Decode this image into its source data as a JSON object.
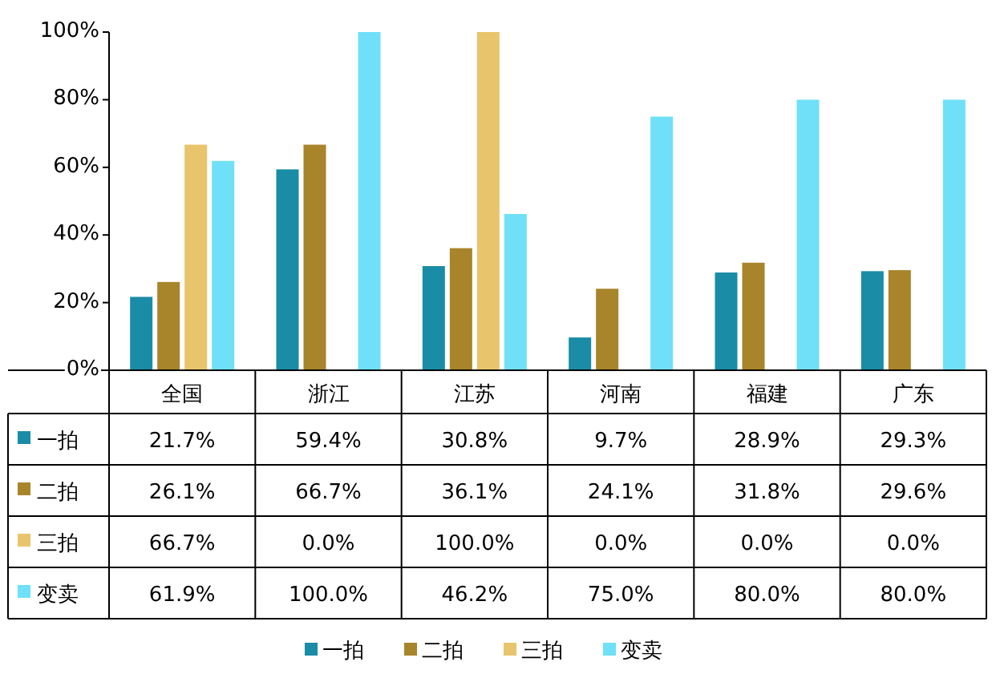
{
  "chart_data": {
    "type": "bar",
    "categories": [
      "全国",
      "浙江",
      "江苏",
      "河南",
      "福建",
      "广东"
    ],
    "series": [
      {
        "name": "一拍",
        "color": "#1a8ca6",
        "values": [
          21.7,
          59.4,
          30.8,
          9.7,
          28.9,
          29.3
        ],
        "value_labels": [
          "21.7%",
          "59.4%",
          "30.8%",
          "9.7%",
          "28.9%",
          "29.3%"
        ]
      },
      {
        "name": "二拍",
        "color": "#a8842a",
        "values": [
          26.1,
          66.7,
          36.1,
          24.1,
          31.8,
          29.6
        ],
        "value_labels": [
          "26.1%",
          "66.7%",
          "36.1%",
          "24.1%",
          "31.8%",
          "29.6%"
        ]
      },
      {
        "name": "三拍",
        "color": "#e8c46c",
        "values": [
          66.7,
          0.0,
          100.0,
          0.0,
          0.0,
          0.0
        ],
        "value_labels": [
          "66.7%",
          "0.0%",
          "100.0%",
          "0.0%",
          "0.0%",
          "0.0%"
        ]
      },
      {
        "name": "变卖",
        "color": "#6fe0f8",
        "values": [
          61.9,
          100.0,
          46.2,
          75.0,
          80.0,
          80.0
        ],
        "value_labels": [
          "61.9%",
          "100.0%",
          "46.2%",
          "75.0%",
          "80.0%",
          "80.0%"
        ]
      }
    ],
    "ylim": [
      0,
      100
    ],
    "yticks": [
      {
        "value": 0,
        "label": "0%"
      },
      {
        "value": 20,
        "label": "20%"
      },
      {
        "value": 40,
        "label": "40%"
      },
      {
        "value": 60,
        "label": "60%"
      },
      {
        "value": 80,
        "label": "80%"
      },
      {
        "value": 100,
        "label": "100%"
      }
    ],
    "grid": false,
    "legend": "bottom"
  }
}
